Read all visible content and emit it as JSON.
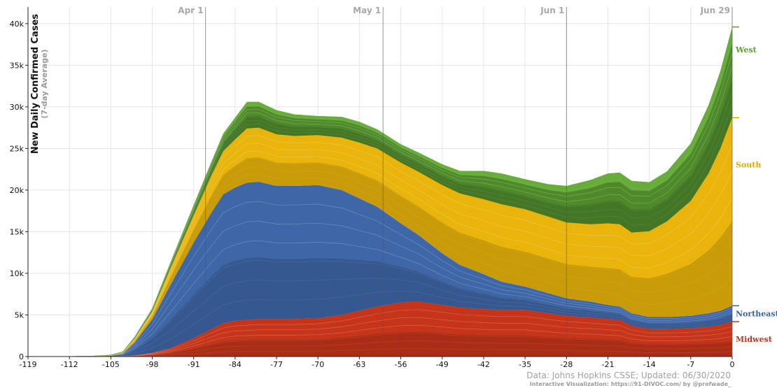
{
  "chart_data": {
    "type": "area",
    "stacked": true,
    "ylabel": "New Daily Confirmed Cases",
    "ylabel_sub": "(7-day Average)",
    "ylim": [
      0,
      42000
    ],
    "xlim": [
      -119,
      0
    ],
    "x_ticks": [
      -119,
      -112,
      -105,
      -98,
      -91,
      -84,
      -77,
      -70,
      -63,
      -56,
      -49,
      -42,
      -35,
      -28,
      -21,
      -14,
      -7,
      0
    ],
    "y_ticks": [
      {
        "value": 0,
        "label": "0"
      },
      {
        "value": 5000,
        "label": "5k"
      },
      {
        "value": 10000,
        "label": "10k"
      },
      {
        "value": 15000,
        "label": "15k"
      },
      {
        "value": 20000,
        "label": "20k"
      },
      {
        "value": 25000,
        "label": "25k"
      },
      {
        "value": 30000,
        "label": "30k"
      },
      {
        "value": 35000,
        "label": "35k"
      },
      {
        "value": 40000,
        "label": "40k"
      }
    ],
    "date_markers": [
      {
        "x": -89,
        "label": "Apr 1"
      },
      {
        "x": -59,
        "label": "May 1"
      },
      {
        "x": -28,
        "label": "Jun 1"
      },
      {
        "x": 0,
        "label": "Jun 29"
      }
    ],
    "x": [
      -119,
      -112,
      -108,
      -105,
      -103,
      -101,
      -98,
      -95,
      -91,
      -88,
      -86,
      -84,
      -82,
      -80,
      -77,
      -74,
      -70,
      -66,
      -63,
      -60,
      -56,
      -53,
      -49,
      -46,
      -42,
      -39,
      -35,
      -31,
      -28,
      -24,
      -21,
      -19,
      -17,
      -14,
      -11,
      -7,
      -4,
      -2,
      0
    ],
    "series": [
      {
        "name": "Midwest",
        "color": "#c63419",
        "values": [
          0,
          0,
          20,
          50,
          80,
          150,
          450,
          1000,
          2200,
          3300,
          4000,
          4300,
          4400,
          4500,
          4500,
          4500,
          4600,
          5000,
          5500,
          6000,
          6500,
          6600,
          6200,
          5900,
          5700,
          5600,
          5600,
          5200,
          4900,
          4700,
          4500,
          4400,
          3700,
          3300,
          3300,
          3400,
          3600,
          3800,
          4200
        ]
      },
      {
        "name": "Northeast",
        "color": "#3f67a8",
        "values": [
          0,
          0,
          20,
          70,
          300,
          1500,
          4000,
          7500,
          11500,
          14000,
          15500,
          16000,
          16500,
          16500,
          16000,
          16000,
          16000,
          15000,
          13500,
          12000,
          9500,
          8000,
          6200,
          5100,
          4200,
          3400,
          2800,
          2400,
          2100,
          1900,
          1700,
          1600,
          1500,
          1450,
          1450,
          1500,
          1600,
          1700,
          1900
        ]
      },
      {
        "name": "South",
        "color": "#e9b40b",
        "values": [
          0,
          0,
          10,
          50,
          150,
          500,
          1000,
          2000,
          3300,
          4500,
          5200,
          5800,
          6500,
          6500,
          6200,
          6000,
          6000,
          6300,
          6700,
          7000,
          7300,
          7600,
          8200,
          8600,
          9000,
          9300,
          9300,
          9200,
          9100,
          9300,
          9800,
          9900,
          9700,
          10300,
          11500,
          13800,
          16800,
          19500,
          22600
        ]
      },
      {
        "name": "West",
        "color": "#4f8a2a",
        "values": [
          0,
          0,
          10,
          30,
          50,
          200,
          350,
          700,
          1200,
          1600,
          2100,
          2600,
          3200,
          3100,
          2900,
          2600,
          2300,
          2500,
          2500,
          2300,
          2200,
          2300,
          2500,
          2700,
          3400,
          3700,
          3600,
          3900,
          4400,
          5300,
          6000,
          6200,
          6200,
          5900,
          6000,
          6900,
          8200,
          9300,
          10900
        ]
      }
    ],
    "region_labels": [
      {
        "name": "West",
        "color": "#58a12e"
      },
      {
        "name": "South",
        "color": "#e0a800"
      },
      {
        "name": "Northeast",
        "color": "#3961a3"
      },
      {
        "name": "Midwest",
        "color": "#c63419"
      }
    ]
  },
  "footer": {
    "source": "Data: Johns Hopkins CSSE; Updated: 06/30/2020",
    "credit": "Interactive Visualization: https://91-DIVOC.com/ by @profwade_"
  }
}
